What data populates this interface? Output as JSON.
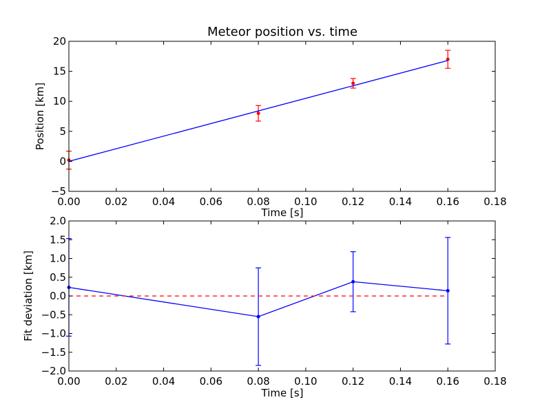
{
  "chart_data": [
    {
      "type": "scatter",
      "title": "Meteor position vs. time",
      "xlabel": "Time [s]",
      "ylabel": "Position [km]",
      "xlim": [
        0.0,
        0.18
      ],
      "ylim": [
        -5,
        20
      ],
      "xticks": [
        "0.00",
        "0.02",
        "0.04",
        "0.06",
        "0.08",
        "0.10",
        "0.12",
        "0.14",
        "0.16",
        "0.18"
      ],
      "yticks": [
        "−5",
        "0",
        "5",
        "10",
        "15",
        "20"
      ],
      "colors": {
        "points": "#ff0000",
        "fit": "#0000ff"
      },
      "series": [
        {
          "kind": "errorbar-points",
          "x": [
            0.0,
            0.08,
            0.12,
            0.16
          ],
          "y": [
            0.2,
            8.0,
            13.0,
            17.0
          ],
          "yerr": [
            1.5,
            1.3,
            0.8,
            1.5
          ]
        },
        {
          "kind": "fit-line",
          "x": [
            0.0,
            0.16
          ],
          "y": [
            0.0,
            16.8
          ]
        }
      ]
    },
    {
      "type": "line",
      "title": "",
      "xlabel": "Time [s]",
      "ylabel": "Fit deviation [km]",
      "xlim": [
        0.0,
        0.18
      ],
      "ylim": [
        -2.0,
        2.0
      ],
      "xticks": [
        "0.00",
        "0.02",
        "0.04",
        "0.06",
        "0.08",
        "0.10",
        "0.12",
        "0.14",
        "0.16",
        "0.18"
      ],
      "yticks": [
        "−2.0",
        "−1.5",
        "−1.0",
        "−0.5",
        "0.0",
        "0.5",
        "1.0",
        "1.5",
        "2.0"
      ],
      "colors": {
        "line": "#0000ff",
        "zero": "#ff0000"
      },
      "series": [
        {
          "kind": "errorbar-line",
          "x": [
            0.0,
            0.08,
            0.12,
            0.16
          ],
          "y": [
            0.23,
            -0.55,
            0.38,
            0.14
          ],
          "yerr": [
            1.3,
            1.3,
            0.8,
            1.42
          ]
        },
        {
          "kind": "zero-line",
          "x": [
            0.0,
            0.16
          ],
          "y": [
            0.0,
            0.0
          ]
        }
      ]
    }
  ]
}
